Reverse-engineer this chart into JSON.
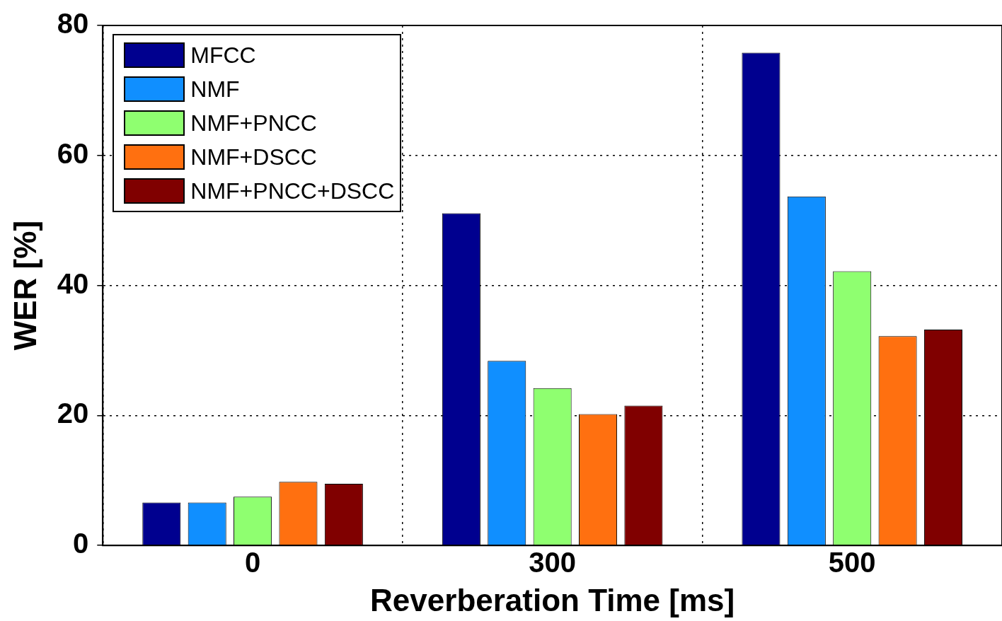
{
  "chart_data": {
    "type": "bar",
    "xlabel": "Reverberation Time [ms]",
    "ylabel": "WER [%]",
    "categories": [
      "0",
      "300",
      "500"
    ],
    "series": [
      {
        "name": "MFCC",
        "color": "#00008f",
        "values": [
          6.6,
          51.1,
          75.8
        ]
      },
      {
        "name": "NMF",
        "color": "#108fff",
        "values": [
          6.6,
          28.4,
          53.7
        ]
      },
      {
        "name": "NMF+PNCC",
        "color": "#8fff70",
        "values": [
          7.5,
          24.2,
          42.2
        ]
      },
      {
        "name": "NMF+DSCC",
        "color": "#ff7010",
        "values": [
          9.8,
          20.2,
          32.2
        ]
      },
      {
        "name": "NMF+PNCC+DSCC",
        "color": "#800000",
        "values": [
          9.5,
          21.5,
          33.2
        ]
      }
    ],
    "ylim": [
      0,
      80
    ],
    "yticks": [
      0,
      20,
      40,
      60,
      80
    ],
    "grid": true,
    "legend": "top left"
  }
}
